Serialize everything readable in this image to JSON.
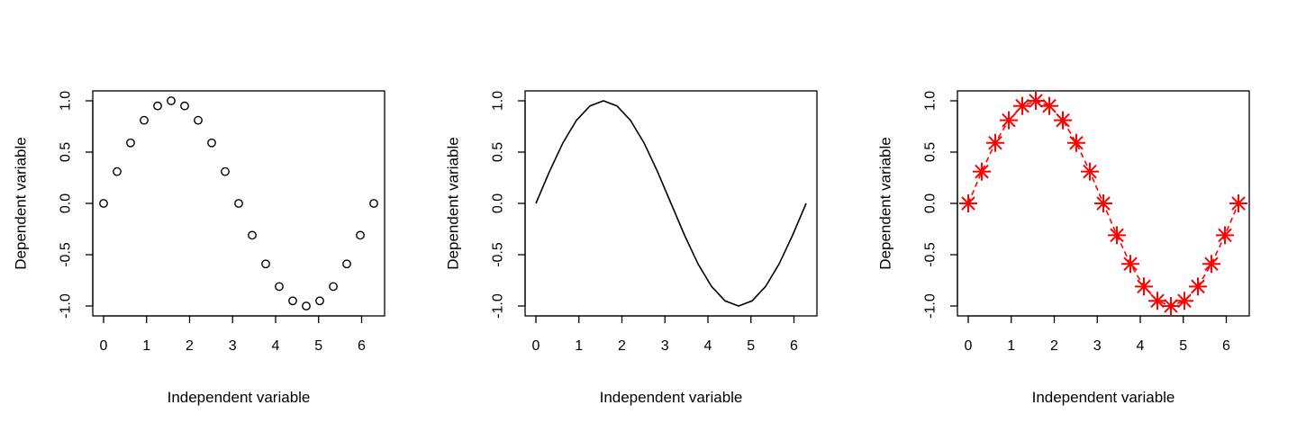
{
  "chart_data": [
    {
      "type": "scatter",
      "marker": "open-circle",
      "color": "#000000",
      "xlabel": "Independent variable",
      "ylabel": "Dependent variable",
      "xlim": [
        0,
        6.283
      ],
      "ylim": [
        -1,
        1
      ],
      "xticks": [
        "0",
        "1",
        "2",
        "3",
        "4",
        "5",
        "6"
      ],
      "yticks": [
        "-1.0",
        "-0.5",
        "0.0",
        "0.5",
        "1.0"
      ],
      "grid": false,
      "x": [
        0,
        0.314,
        0.628,
        0.942,
        1.257,
        1.571,
        1.885,
        2.199,
        2.513,
        2.827,
        3.142,
        3.456,
        3.77,
        4.084,
        4.398,
        4.712,
        5.027,
        5.341,
        5.655,
        5.969,
        6.283
      ],
      "y": [
        0.0,
        0.31,
        0.59,
        0.81,
        0.95,
        1.0,
        0.95,
        0.81,
        0.59,
        0.31,
        0.0,
        -0.31,
        -0.59,
        -0.81,
        -0.95,
        -1.0,
        -0.95,
        -0.81,
        -0.59,
        -0.31,
        0.0
      ]
    },
    {
      "type": "line",
      "color": "#000000",
      "xlabel": "Independent variable",
      "ylabel": "Dependent variable",
      "xlim": [
        0,
        6.283
      ],
      "ylim": [
        -1,
        1
      ],
      "xticks": [
        "0",
        "1",
        "2",
        "3",
        "4",
        "5",
        "6"
      ],
      "yticks": [
        "-1.0",
        "-0.5",
        "0.0",
        "0.5",
        "1.0"
      ],
      "grid": false,
      "x": [
        0,
        0.314,
        0.628,
        0.942,
        1.257,
        1.571,
        1.885,
        2.199,
        2.513,
        2.827,
        3.142,
        3.456,
        3.77,
        4.084,
        4.398,
        4.712,
        5.027,
        5.341,
        5.655,
        5.969,
        6.283
      ],
      "y": [
        0.0,
        0.31,
        0.59,
        0.81,
        0.95,
        1.0,
        0.95,
        0.81,
        0.59,
        0.31,
        0.0,
        -0.31,
        -0.59,
        -0.81,
        -0.95,
        -1.0,
        -0.95,
        -0.81,
        -0.59,
        -0.31,
        0.0
      ]
    },
    {
      "type": "line",
      "marker": "asterisk",
      "line_style": "dashed",
      "color": "#ff0000",
      "xlabel": "Independent variable",
      "ylabel": "Dependent variable",
      "xlim": [
        0,
        6.283
      ],
      "ylim": [
        -1,
        1
      ],
      "xticks": [
        "0",
        "1",
        "2",
        "3",
        "4",
        "5",
        "6"
      ],
      "yticks": [
        "-1.0",
        "-0.5",
        "0.0",
        "0.5",
        "1.0"
      ],
      "grid": false,
      "x": [
        0,
        0.314,
        0.628,
        0.942,
        1.257,
        1.571,
        1.885,
        2.199,
        2.513,
        2.827,
        3.142,
        3.456,
        3.77,
        4.084,
        4.398,
        4.712,
        5.027,
        5.341,
        5.655,
        5.969,
        6.283
      ],
      "y": [
        0.0,
        0.31,
        0.59,
        0.81,
        0.95,
        1.0,
        0.95,
        0.81,
        0.59,
        0.31,
        0.0,
        -0.31,
        -0.59,
        -0.81,
        -0.95,
        -1.0,
        -0.95,
        -0.81,
        -0.59,
        -0.31,
        0.0
      ]
    }
  ]
}
